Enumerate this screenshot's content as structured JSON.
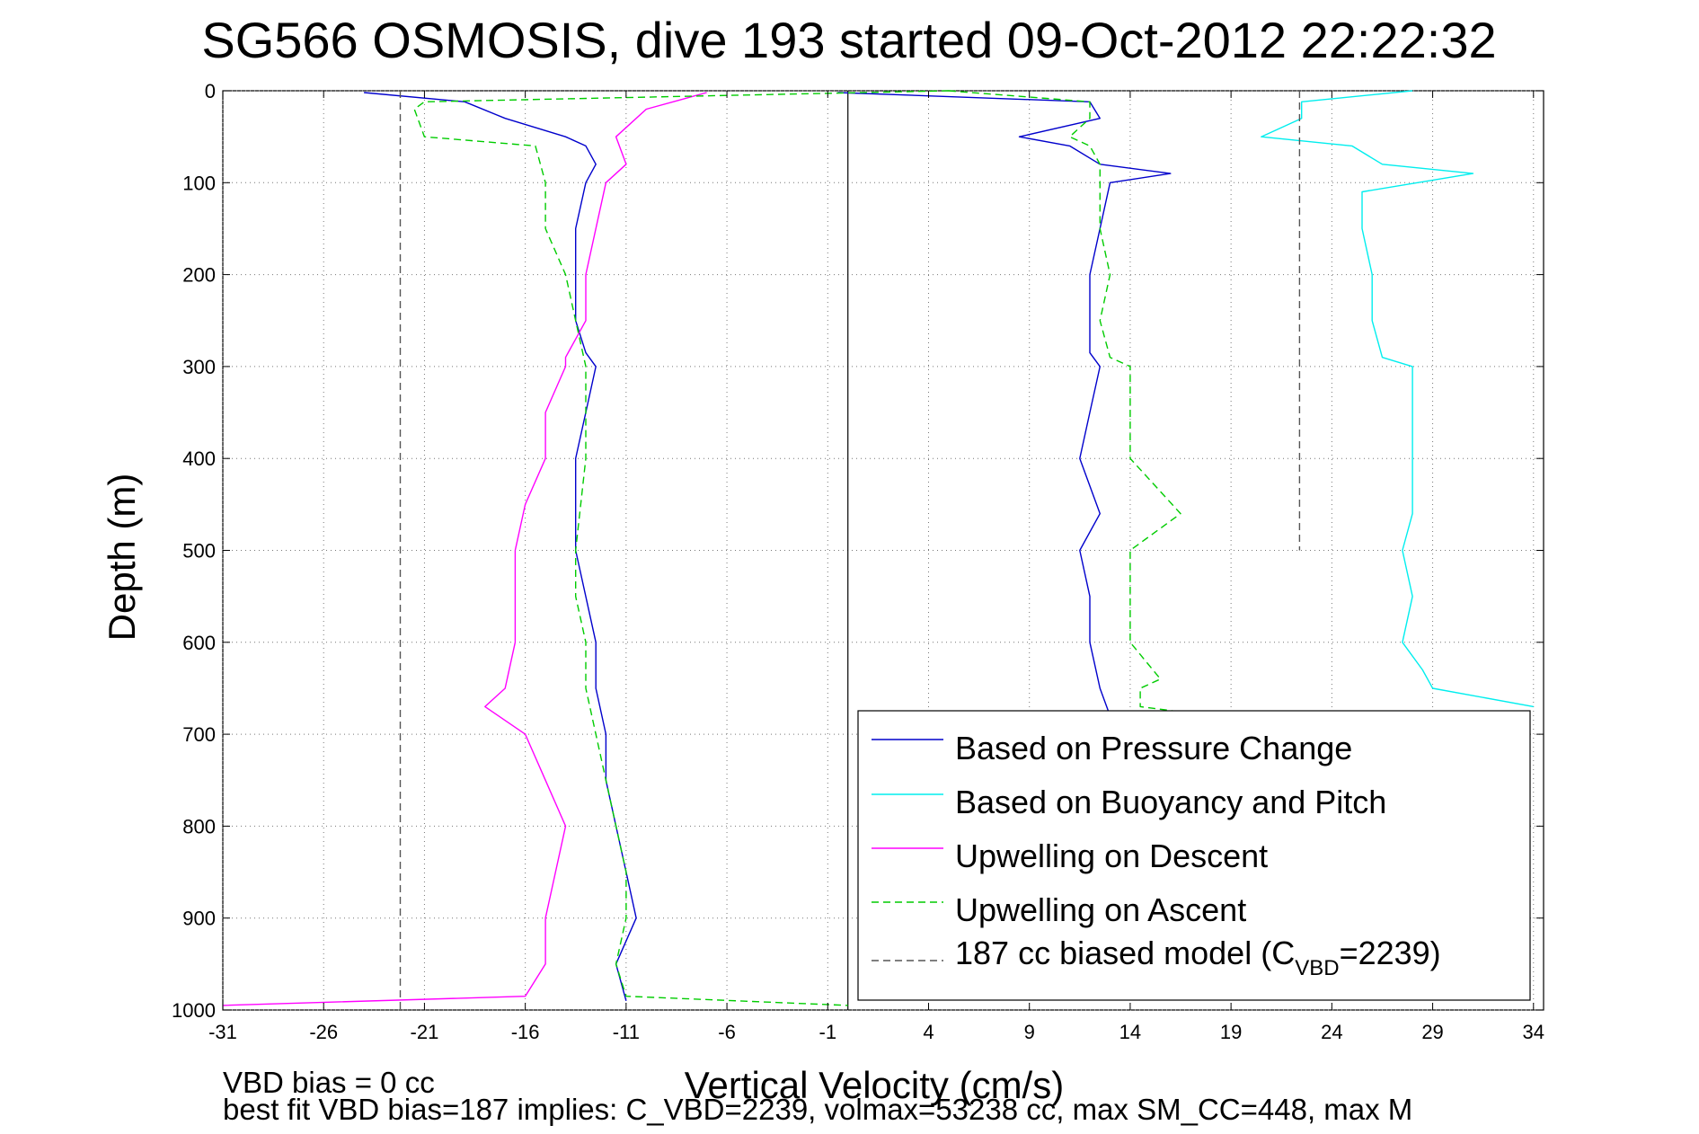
{
  "chart_data": {
    "type": "line",
    "title": "SG566 OSMOSIS, dive 193 started 09-Oct-2012 22:22:32",
    "xlabel": "Vertical Velocity (cm/s)",
    "ylabel": "Depth (m)",
    "xlim": [
      -31,
      34.5
    ],
    "ylim": [
      0,
      1000
    ],
    "y_reversed": true,
    "grid": true,
    "xticks": [
      -31,
      -26,
      -21,
      -16,
      -11,
      -6,
      -1,
      4,
      9,
      14,
      19,
      24,
      29,
      34
    ],
    "yticks": [
      0,
      100,
      200,
      300,
      400,
      500,
      600,
      700,
      800,
      900,
      1000
    ],
    "x_tick_labels": [
      "-31",
      "-26",
      "-21",
      "-16",
      "-11",
      "-6",
      "-1",
      "4",
      "9",
      "14",
      "19",
      "24",
      "29",
      "34"
    ],
    "y_tick_labels": [
      "0",
      "100",
      "200",
      "300",
      "400",
      "500",
      "600",
      "700",
      "800",
      "900",
      "1000"
    ],
    "legend_position": "bottom-right",
    "legend": [
      {
        "label": "Based on Pressure Change",
        "color": "#0000cc",
        "style": "solid"
      },
      {
        "label": "Based on Buoyancy and Pitch",
        "color": "#00eeee",
        "style": "solid"
      },
      {
        "label": "Upwelling on Descent",
        "color": "#ff00ff",
        "style": "solid"
      },
      {
        "label": "Upwelling on Ascent",
        "color": "#00cc00",
        "style": "dashed"
      },
      {
        "label": "187 cc biased model (C",
        "subscript": "VBD",
        "suffix": "=2239)",
        "color": "#555555",
        "style": "dashed"
      }
    ],
    "zero_line_x": 0,
    "series": [
      {
        "color": "#0000cc",
        "style": "solid",
        "depth": [
          2,
          12,
          30,
          50,
          60,
          80,
          100,
          150,
          200,
          250,
          285,
          300,
          350,
          400,
          500,
          600,
          650,
          700,
          750,
          800,
          850,
          900,
          950,
          990
        ],
        "x": [
          -24,
          -19,
          -17,
          -14,
          -13,
          -12.5,
          -13,
          -13.5,
          -13.5,
          -13.5,
          -13,
          -12.5,
          -13,
          -13.5,
          -13.5,
          -12.5,
          -12.5,
          -12,
          -12,
          -11.5,
          -11,
          -10.5,
          -11.5,
          -11
        ]
      },
      {
        "color": "#0000cc",
        "style": "solid",
        "depth": [
          2,
          12,
          30,
          50,
          60,
          80,
          90,
          100,
          150,
          200,
          250,
          285,
          300,
          350,
          400,
          460,
          500,
          550,
          600,
          650,
          680
        ],
        "x": [
          -0.5,
          12,
          12.5,
          8.5,
          11,
          12.5,
          16,
          13,
          12.5,
          12,
          12,
          12,
          12.5,
          12,
          11.5,
          12.5,
          11.5,
          12,
          12,
          12.5,
          13
        ]
      },
      {
        "color": "#00eeee",
        "style": "solid",
        "depth": [
          0,
          12,
          30,
          50,
          60,
          80,
          90,
          110,
          150,
          200,
          250,
          290,
          300,
          350,
          400,
          460,
          500,
          550,
          600,
          630,
          650,
          670
        ],
        "x": [
          28,
          22.5,
          22.5,
          20.5,
          25,
          26.5,
          31,
          25.5,
          25.5,
          26,
          26,
          26.5,
          28,
          28,
          28,
          28,
          27.5,
          28,
          27.5,
          28.5,
          29,
          34
        ]
      },
      {
        "color": "#ff00ff",
        "style": "solid",
        "depth": [
          2,
          20,
          50,
          80,
          100,
          150,
          200,
          250,
          290,
          300,
          350,
          400,
          450,
          500,
          550,
          600,
          650,
          670,
          700,
          750,
          800,
          850,
          900,
          950,
          985,
          995
        ],
        "x": [
          -7,
          -10,
          -11.5,
          -11,
          -12,
          -12.5,
          -13,
          -13,
          -14,
          -14,
          -15,
          -15,
          -16,
          -16.5,
          -16.5,
          -16.5,
          -17,
          -18,
          -16,
          -15,
          -14,
          -14.5,
          -15,
          -15,
          -16,
          -31
        ]
      },
      {
        "color": "#00cc00",
        "style": "dashed",
        "depth": [
          0,
          12,
          20,
          50,
          60,
          100,
          150,
          200,
          250,
          300,
          400,
          500,
          550,
          600,
          650,
          700,
          750,
          800,
          850,
          900,
          950,
          985,
          995
        ],
        "x": [
          5,
          -21,
          -21.5,
          -21,
          -15.5,
          -15,
          -15,
          -14,
          -13.5,
          -13,
          -13,
          -13.5,
          -13.5,
          -13,
          -13,
          -12.5,
          -12,
          -11.5,
          -11,
          -11,
          -11.5,
          -11,
          0
        ]
      },
      {
        "color": "#00cc00",
        "style": "dashed",
        "depth": [
          0,
          12,
          30,
          50,
          60,
          80,
          100,
          150,
          200,
          250,
          290,
          300,
          350,
          400,
          460,
          500,
          550,
          600,
          640,
          650,
          670,
          680
        ],
        "x": [
          5,
          12,
          12,
          11,
          12,
          12.5,
          12.5,
          12.5,
          13,
          12.5,
          13,
          14,
          14,
          14,
          16.5,
          14,
          14,
          14,
          15.5,
          14.5,
          14.5,
          18
        ]
      },
      {
        "color": "#555555",
        "style": "dashed",
        "depth": [
          0,
          1000
        ],
        "x": [
          -22.2,
          -22.2
        ]
      },
      {
        "color": "#555555",
        "style": "dashed",
        "depth": [
          0,
          500
        ],
        "x": [
          22.4,
          22.4
        ]
      }
    ]
  },
  "footer": {
    "line1": "VBD bias = 0 cc",
    "line2": "best fit VBD bias=187 implies: C_VBD=2239, volmax=53238 cc, max SM_CC=448, max M"
  }
}
